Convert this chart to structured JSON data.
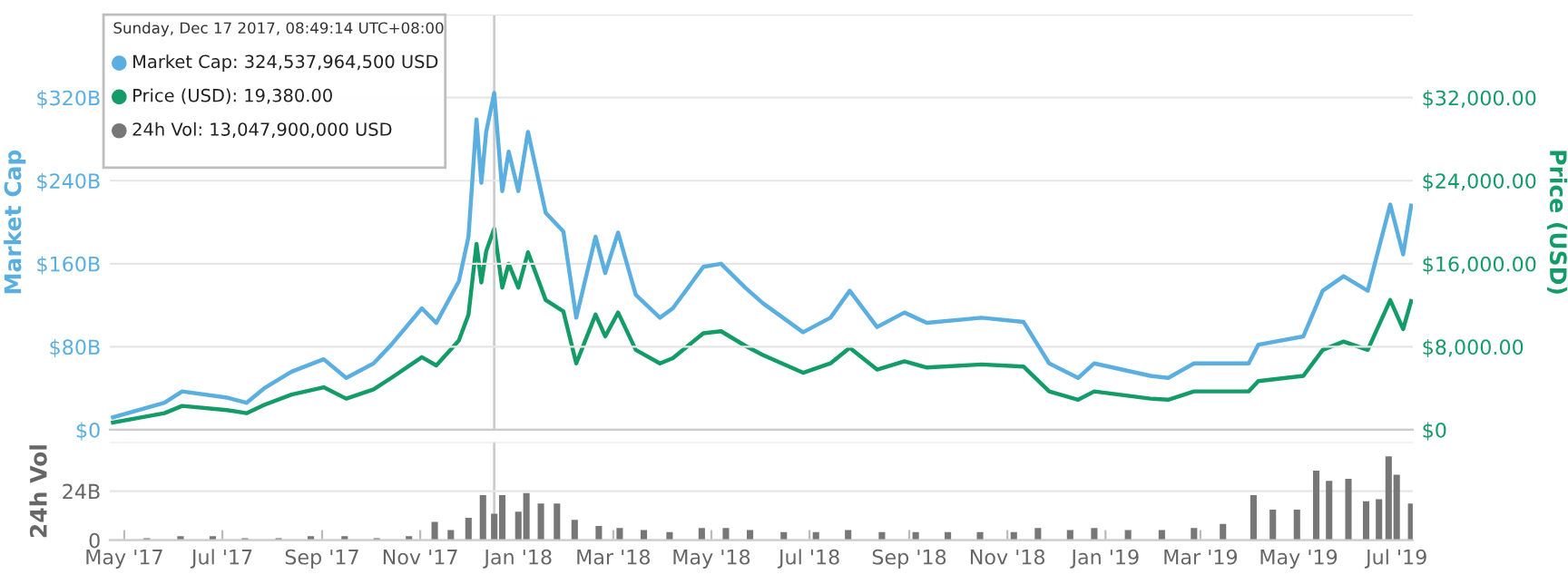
{
  "chart_data": [
    {
      "type": "line",
      "ylabel": "Market Cap",
      "y2label": "Price (USD)",
      "annotations": [
        "Sunday, Dec 17 2017, 08:49:14 UTC+08:00",
        "Market Cap: 324,537,964,500 USD",
        "Price (USD): 19,380.00",
        "24h Vol: 13,047,900,000 USD"
      ],
      "x": [
        "2017-04-24",
        "2017-05-26",
        "2017-06-06",
        "2017-07-04",
        "2017-07-16",
        "2017-07-27",
        "2017-08-13",
        "2017-09-02",
        "2017-09-16",
        "2017-10-03",
        "2017-10-14",
        "2017-11-02",
        "2017-11-11",
        "2017-11-25",
        "2017-12-01",
        "2017-12-06",
        "2017-12-09",
        "2017-12-12",
        "2017-12-17",
        "2017-12-22",
        "2017-12-26",
        "2018-01-01",
        "2018-01-07",
        "2018-01-18",
        "2018-01-29",
        "2018-02-06",
        "2018-02-18",
        "2018-02-24",
        "2018-03-04",
        "2018-03-15",
        "2018-03-30",
        "2018-04-07",
        "2018-04-26",
        "2018-05-07",
        "2018-05-22",
        "2018-06-02",
        "2018-06-27",
        "2018-07-14",
        "2018-07-26",
        "2018-08-12",
        "2018-08-29",
        "2018-09-12",
        "2018-10-16",
        "2018-11-11",
        "2018-11-27",
        "2018-12-15",
        "2018-12-25",
        "2019-01-29",
        "2019-02-09",
        "2019-02-25",
        "2019-03-31",
        "2019-04-06",
        "2019-05-04",
        "2019-05-16",
        "2019-05-29",
        "2019-06-13",
        "2019-06-27",
        "2019-07-05",
        "2019-07-10"
      ],
      "series": [
        {
          "color": "#5aaee0",
          "values": [
            12,
            26,
            37,
            31,
            26,
            40,
            56,
            68,
            50,
            64,
            82,
            117,
            103,
            143,
            186,
            299,
            238,
            287,
            324.5,
            230,
            268,
            230,
            287,
            209,
            191,
            108,
            186,
            151,
            190,
            130,
            108,
            117,
            157,
            160,
            137,
            122,
            94,
            108,
            134,
            99,
            113,
            103,
            108,
            104,
            64,
            50,
            64,
            52,
            50,
            64,
            64,
            82,
            90,
            134,
            148,
            134,
            217,
            169,
            216
          ]
        },
        {
          "color": "#139b68",
          "axis": "y2",
          "values": [
            700,
            1600,
            2300,
            1900,
            1600,
            2400,
            3400,
            4100,
            3000,
            3900,
            5000,
            7000,
            6200,
            8600,
            11100,
            17900,
            14200,
            17200,
            19380,
            13700,
            16000,
            13700,
            17100,
            12500,
            11400,
            6400,
            11100,
            9000,
            11300,
            7700,
            6400,
            6900,
            9300,
            9500,
            8100,
            7200,
            5500,
            6400,
            7900,
            5800,
            6600,
            6000,
            6300,
            6100,
            3700,
            2900,
            3700,
            3000,
            2900,
            3700,
            3700,
            4700,
            5200,
            7700,
            8500,
            7700,
            12500,
            9700,
            12400
          ]
        }
      ],
      "xlim": [
        "2017-04-22",
        "2019-07-11"
      ],
      "ylim": [
        0,
        400
      ],
      "yticks": [
        {
          "value": 0,
          "label": "$0"
        },
        {
          "value": 80,
          "label": "$80B"
        },
        {
          "value": 160,
          "label": "$160B"
        },
        {
          "value": 240,
          "label": "$240B"
        },
        {
          "value": 320,
          "label": "$320B"
        },
        {
          "value": 400,
          "label": null
        }
      ],
      "y2lim": [
        0,
        40000
      ],
      "y2ticks": [
        {
          "value": 0,
          "label": "$0"
        },
        {
          "value": 8000,
          "label": "$8,000.00"
        },
        {
          "value": 16000,
          "label": "$16,000.00"
        },
        {
          "value": 24000,
          "label": "$24,000.00"
        },
        {
          "value": 32000,
          "label": "$32,000.00"
        }
      ],
      "ref_lines": [
        {
          "axis": "x",
          "value": "2017-12-17",
          "color": "#cccccc"
        }
      ],
      "grid": "y",
      "tick_labels": "y",
      "marker": "none",
      "line_style": "solid"
    },
    {
      "type": "bar",
      "ylabel": "24h Vol",
      "x": [
        "2017-04-25",
        "2017-05-15",
        "2017-06-05",
        "2017-06-25",
        "2017-07-15",
        "2017-08-05",
        "2017-08-25",
        "2017-09-15",
        "2017-10-05",
        "2017-10-25",
        "2017-11-10",
        "2017-11-20",
        "2017-12-01",
        "2017-12-10",
        "2017-12-17",
        "2017-12-22",
        "2018-01-01",
        "2018-01-06",
        "2018-01-15",
        "2018-01-25",
        "2018-02-05",
        "2018-02-20",
        "2018-03-05",
        "2018-03-20",
        "2018-04-05",
        "2018-04-25",
        "2018-05-10",
        "2018-05-25",
        "2018-06-15",
        "2018-07-05",
        "2018-07-25",
        "2018-08-15",
        "2018-09-05",
        "2018-09-25",
        "2018-10-15",
        "2018-11-05",
        "2018-11-20",
        "2018-12-10",
        "2018-12-25",
        "2019-01-15",
        "2019-02-05",
        "2019-02-25",
        "2019-03-15",
        "2019-04-03",
        "2019-04-15",
        "2019-04-30",
        "2019-05-12",
        "2019-05-20",
        "2019-06-01",
        "2019-06-12",
        "2019-06-20",
        "2019-06-26",
        "2019-07-01",
        "2019-07-10"
      ],
      "series": [
        {
          "color": "#777777",
          "values": [
            0,
            1,
            2,
            2,
            1,
            1,
            2,
            2,
            1,
            2,
            9,
            5,
            11,
            22,
            13,
            22,
            14,
            23,
            18,
            18,
            10,
            7,
            6,
            5,
            4,
            6,
            6,
            5,
            4,
            4,
            5,
            4,
            4,
            4,
            4,
            4,
            6,
            5,
            6,
            5,
            5,
            6,
            8,
            22,
            15,
            15,
            34,
            29,
            30,
            19,
            20,
            41,
            32,
            18
          ]
        }
      ],
      "xlim": [
        "2017-04-22",
        "2019-07-11"
      ],
      "xticks": [
        {
          "value": "2017-05-01",
          "label": "May '17"
        },
        {
          "value": "2017-07-01",
          "label": "Jul '17"
        },
        {
          "value": "2017-09-01",
          "label": "Sep '17"
        },
        {
          "value": "2017-11-01",
          "label": "Nov '17"
        },
        {
          "value": "2018-01-01",
          "label": "Jan '18"
        },
        {
          "value": "2018-03-01",
          "label": "Mar '18"
        },
        {
          "value": "2018-05-01",
          "label": "May '18"
        },
        {
          "value": "2018-07-01",
          "label": "Jul '18"
        },
        {
          "value": "2018-09-01",
          "label": "Sep '18"
        },
        {
          "value": "2018-11-01",
          "label": "Nov '18"
        },
        {
          "value": "2019-01-01",
          "label": "Jan '19"
        },
        {
          "value": "2019-03-01",
          "label": "Mar '19"
        },
        {
          "value": "2019-05-01",
          "label": "May '19"
        },
        {
          "value": "2019-07-01",
          "label": "Jul '19"
        }
      ],
      "ylim": [
        0,
        48
      ],
      "yticks": [
        {
          "value": 0,
          "label": "0"
        },
        {
          "value": 24,
          "label": "24B"
        },
        {
          "value": 48,
          "label": null
        }
      ],
      "ref_lines": [
        {
          "axis": "x",
          "value": "2017-12-17",
          "color": "#cccccc"
        }
      ],
      "grid": "y"
    }
  ]
}
